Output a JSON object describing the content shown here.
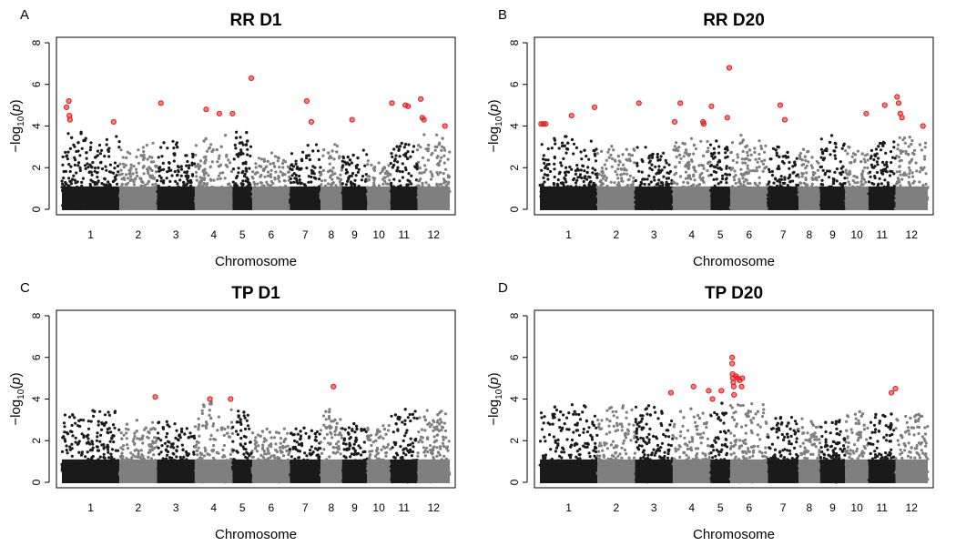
{
  "figure": {
    "colors": {
      "chrom_odd": "#1a1a1a",
      "chrom_even": "#7f7f7f",
      "significant": "#e31a1c",
      "axis": "#000000"
    }
  },
  "chart_data": [
    {
      "panel_label": "A",
      "type": "scatter",
      "subtype": "manhattan",
      "title": "RR D1",
      "xlabel": "Chromosome",
      "ylabel": "−log10(p)",
      "ylim": [
        0,
        8
      ],
      "yticks": [
        0,
        2,
        4,
        6,
        8
      ],
      "categories": [
        "1",
        "2",
        "3",
        "4",
        "5",
        "6",
        "7",
        "8",
        "9",
        "10",
        "11",
        "12"
      ],
      "noise_peaks": [
        3.7,
        3.0,
        3.3,
        3.5,
        3.9,
        2.4,
        2.9,
        2.9,
        2.6,
        2.1,
        3.2,
        3.6
      ],
      "highlight_series": "significant",
      "significant_points": [
        {
          "chromosome": "1",
          "position": 0.08,
          "value": 4.9
        },
        {
          "chromosome": "1",
          "position": 0.12,
          "value": 5.2
        },
        {
          "chromosome": "1",
          "position": 0.13,
          "value": 4.5
        },
        {
          "chromosome": "1",
          "position": 0.14,
          "value": 4.3
        },
        {
          "chromosome": "1",
          "position": 0.9,
          "value": 4.2
        },
        {
          "chromosome": "3",
          "position": 0.1,
          "value": 5.1
        },
        {
          "chromosome": "4",
          "position": 0.3,
          "value": 4.8
        },
        {
          "chromosome": "4",
          "position": 0.65,
          "value": 4.6
        },
        {
          "chromosome": "5",
          "position": 0.0,
          "value": 4.6
        },
        {
          "chromosome": "5",
          "position": 0.95,
          "value": 6.3
        },
        {
          "chromosome": "7",
          "position": 0.55,
          "value": 5.2
        },
        {
          "chromosome": "7",
          "position": 0.7,
          "value": 4.2
        },
        {
          "chromosome": "9",
          "position": 0.4,
          "value": 4.3
        },
        {
          "chromosome": "11",
          "position": 0.05,
          "value": 5.1
        },
        {
          "chromosome": "11",
          "position": 0.55,
          "value": 5.0
        },
        {
          "chromosome": "11",
          "position": 0.65,
          "value": 4.95
        },
        {
          "chromosome": "12",
          "position": 0.1,
          "value": 5.3
        },
        {
          "chromosome": "12",
          "position": 0.15,
          "value": 4.4
        },
        {
          "chromosome": "12",
          "position": 0.2,
          "value": 4.3
        },
        {
          "chromosome": "12",
          "position": 0.85,
          "value": 4.0
        }
      ]
    },
    {
      "panel_label": "B",
      "type": "scatter",
      "subtype": "manhattan",
      "title": "RR D20",
      "xlabel": "Chromosome",
      "ylabel": "−log10(p)",
      "ylim": [
        0,
        8
      ],
      "yticks": [
        0,
        2,
        4,
        6,
        8
      ],
      "categories": [
        "1",
        "2",
        "3",
        "4",
        "5",
        "6",
        "7",
        "8",
        "9",
        "10",
        "11",
        "12"
      ],
      "noise_peaks": [
        3.5,
        3.2,
        2.8,
        3.3,
        3.3,
        3.5,
        3.0,
        3.0,
        3.6,
        2.8,
        3.3,
        3.5
      ],
      "highlight_series": "significant",
      "significant_points": [
        {
          "chromosome": "1",
          "position": 0.02,
          "value": 4.1
        },
        {
          "chromosome": "1",
          "position": 0.06,
          "value": 4.1
        },
        {
          "chromosome": "1",
          "position": 0.1,
          "value": 4.1
        },
        {
          "chromosome": "1",
          "position": 0.55,
          "value": 4.5
        },
        {
          "chromosome": "1",
          "position": 0.95,
          "value": 4.9
        },
        {
          "chromosome": "3",
          "position": 0.1,
          "value": 5.1
        },
        {
          "chromosome": "4",
          "position": 0.05,
          "value": 4.2
        },
        {
          "chromosome": "4",
          "position": 0.2,
          "value": 5.1
        },
        {
          "chromosome": "4",
          "position": 0.8,
          "value": 4.2
        },
        {
          "chromosome": "4",
          "position": 0.82,
          "value": 4.1
        },
        {
          "chromosome": "5",
          "position": 0.05,
          "value": 4.95
        },
        {
          "chromosome": "5",
          "position": 0.85,
          "value": 4.4
        },
        {
          "chromosome": "5",
          "position": 0.95,
          "value": 6.8
        },
        {
          "chromosome": "7",
          "position": 0.4,
          "value": 5.0
        },
        {
          "chromosome": "7",
          "position": 0.55,
          "value": 4.3
        },
        {
          "chromosome": "10",
          "position": 0.9,
          "value": 4.6
        },
        {
          "chromosome": "11",
          "position": 0.6,
          "value": 5.0
        },
        {
          "chromosome": "12",
          "position": 0.05,
          "value": 5.4
        },
        {
          "chromosome": "12",
          "position": 0.1,
          "value": 5.1
        },
        {
          "chromosome": "12",
          "position": 0.15,
          "value": 4.6
        },
        {
          "chromosome": "12",
          "position": 0.2,
          "value": 4.4
        },
        {
          "chromosome": "12",
          "position": 0.85,
          "value": 4.0
        }
      ]
    },
    {
      "panel_label": "C",
      "type": "scatter",
      "subtype": "manhattan",
      "title": "TP D1",
      "xlabel": "Chromosome",
      "ylabel": "−log10(p)",
      "ylim": [
        0,
        8
      ],
      "yticks": [
        0,
        2,
        4,
        6,
        8
      ],
      "categories": [
        "1",
        "2",
        "3",
        "4",
        "5",
        "6",
        "7",
        "8",
        "9",
        "10",
        "11",
        "12"
      ],
      "noise_peaks": [
        3.5,
        3.0,
        2.9,
        3.9,
        3.4,
        2.6,
        2.8,
        3.5,
        2.9,
        2.7,
        3.6,
        3.5
      ],
      "highlight_series": "significant",
      "significant_points": [
        {
          "chromosome": "2",
          "position": 0.95,
          "value": 4.1
        },
        {
          "chromosome": "4",
          "position": 0.4,
          "value": 4.0
        },
        {
          "chromosome": "4",
          "position": 0.95,
          "value": 4.0
        },
        {
          "chromosome": "8",
          "position": 0.6,
          "value": 4.6
        }
      ]
    },
    {
      "panel_label": "D",
      "type": "scatter",
      "subtype": "manhattan",
      "title": "TP D20",
      "xlabel": "Chromosome",
      "ylabel": "−log10(p)",
      "ylim": [
        0,
        8
      ],
      "yticks": [
        0,
        2,
        4,
        6,
        8
      ],
      "categories": [
        "1",
        "2",
        "3",
        "4",
        "5",
        "6",
        "7",
        "8",
        "9",
        "10",
        "11",
        "12"
      ],
      "noise_peaks": [
        3.7,
        3.7,
        3.8,
        3.6,
        3.8,
        4.0,
        3.1,
        3.0,
        3.0,
        3.5,
        3.3,
        3.3
      ],
      "highlight_series": "significant",
      "significant_points": [
        {
          "chromosome": "3",
          "position": 0.95,
          "value": 4.3
        },
        {
          "chromosome": "4",
          "position": 0.55,
          "value": 4.6
        },
        {
          "chromosome": "4",
          "position": 0.95,
          "value": 4.4
        },
        {
          "chromosome": "5",
          "position": 0.1,
          "value": 4.0
        },
        {
          "chromosome": "5",
          "position": 0.55,
          "value": 4.4
        },
        {
          "chromosome": "6",
          "position": 0.05,
          "value": 6.0
        },
        {
          "chromosome": "6",
          "position": 0.05,
          "value": 5.7
        },
        {
          "chromosome": "6",
          "position": 0.06,
          "value": 5.2
        },
        {
          "chromosome": "6",
          "position": 0.07,
          "value": 5.0
        },
        {
          "chromosome": "6",
          "position": 0.08,
          "value": 4.8
        },
        {
          "chromosome": "6",
          "position": 0.09,
          "value": 4.6
        },
        {
          "chromosome": "6",
          "position": 0.1,
          "value": 4.2
        },
        {
          "chromosome": "6",
          "position": 0.15,
          "value": 5.1
        },
        {
          "chromosome": "6",
          "position": 0.2,
          "value": 5.0
        },
        {
          "chromosome": "6",
          "position": 0.25,
          "value": 4.9
        },
        {
          "chromosome": "6",
          "position": 0.3,
          "value": 4.6
        },
        {
          "chromosome": "6",
          "position": 0.32,
          "value": 5.0
        },
        {
          "chromosome": "11",
          "position": 0.85,
          "value": 4.3
        },
        {
          "chromosome": "12",
          "position": 0.0,
          "value": 4.5
        }
      ]
    }
  ]
}
